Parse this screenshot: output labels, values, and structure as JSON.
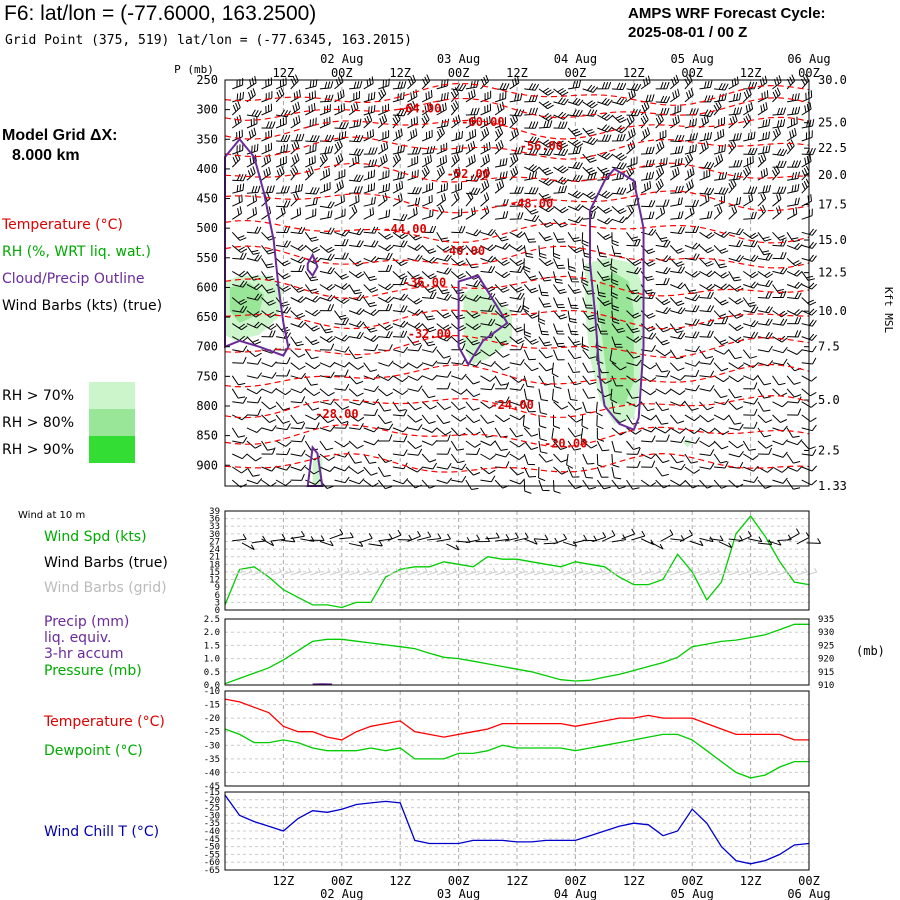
{
  "header": {
    "title": "F6:  lat/lon = (-77.6000, 163.2500)",
    "subtitle": "Grid Point (375, 519) lat/lon = (-77.6345, 163.2015)",
    "cycle_line1": "AMPS WRF Forecast Cycle:",
    "cycle_line2": "2025-08-01 / 00  Z"
  },
  "left_legend": {
    "model_grid_line1": "Model Grid ΔX:",
    "model_grid_line2": "8.000 km",
    "temperature": "Temperature (°C)",
    "rh": "RH (%, WRT liq. wat.)",
    "cloud": "Cloud/Precip Outline",
    "wind_barbs": "Wind Barbs (kts) (true)",
    "rh_levels": [
      "RH > 70%",
      "RH > 80%",
      "RH > 90%"
    ],
    "rh_colors": [
      "#ccf5cc",
      "#99e699",
      "#33dd33"
    ]
  },
  "panel_labels": {
    "wind10m": "Wind at 10 m",
    "wind_spd": "Wind Spd (kts)",
    "wind_barbs_true": "Wind Barbs (true)",
    "wind_barbs_grid": "Wind Barbs (grid)",
    "precip1": "Precip (mm)",
    "precip2": "liq. equiv.",
    "precip3": "3-hr accum",
    "pressure": "Pressure (mb)",
    "pressure_unit": "(mb)",
    "temperature": "Temperature (°C)",
    "dewpoint": "Dewpoint (°C)",
    "wind_chill": "Wind Chill T (°C)",
    "kft": "Kft MSL",
    "p_axis_title": "P (mb)"
  },
  "time_axis": {
    "hour_labels": [
      "12Z",
      "00Z",
      "12Z",
      "00Z",
      "12Z",
      "00Z",
      "12Z",
      "00Z",
      "12Z",
      "00Z"
    ],
    "hour_values": [
      12,
      24,
      36,
      48,
      60,
      72,
      84,
      96,
      108,
      120
    ],
    "date_labels": [
      "02 Aug",
      "03 Aug",
      "04 Aug",
      "05 Aug",
      "06 Aug"
    ],
    "date_values": [
      24,
      48,
      72,
      96,
      120
    ],
    "range_hours": [
      0,
      120
    ]
  },
  "colors": {
    "temperature": "#ff0000",
    "dewpoint": "#00cc00",
    "wind_speed": "#00cc00",
    "pressure": "#00cc00",
    "precip": "#5b1a8c",
    "cloud": "#6a2a9a",
    "wind_chill": "#0000cc",
    "isotherm_label": "#dd0000",
    "grid": "#aaaaaa",
    "legend_purple": "#6a2a9a",
    "legend_green": "#00aa00",
    "legend_red": "#dd0000",
    "legend_blue": "#0000aa"
  },
  "chart_data": [
    {
      "type": "heatmap",
      "id": "cross-section",
      "x_range_hours": [
        0,
        120
      ],
      "pressure_ticks": [
        250,
        300,
        350,
        400,
        450,
        500,
        550,
        600,
        650,
        700,
        750,
        800,
        850,
        900
      ],
      "ylim_mb": [
        250,
        935
      ],
      "height_ticks": [
        "30.0",
        "25.0",
        "22.5",
        "20.0",
        "17.5",
        "15.0",
        "12.5",
        "10.0",
        "7.5",
        "5.0",
        "2.5",
        "1.33"
      ],
      "height_tick_pressures": [
        250,
        322,
        365,
        410,
        460,
        520,
        575,
        640,
        700,
        790,
        875,
        935
      ],
      "isotherm_labels": [
        {
          "text": "-64.00",
          "t": 40,
          "p": 305
        },
        {
          "text": "-60.00",
          "t": 53,
          "p": 328
        },
        {
          "text": "-56.00",
          "t": 65,
          "p": 368
        },
        {
          "text": "-52.00",
          "t": 50,
          "p": 415
        },
        {
          "text": "-48.00",
          "t": 63,
          "p": 465
        },
        {
          "text": "-44.00",
          "t": 37,
          "p": 508
        },
        {
          "text": "-40.00",
          "t": 49,
          "p": 545
        },
        {
          "text": "-36.00",
          "t": 41,
          "p": 598
        },
        {
          "text": "-32.00",
          "t": 42,
          "p": 685
        },
        {
          "text": "-28.00",
          "t": 23,
          "p": 820
        },
        {
          "text": "-24.00",
          "t": 59,
          "p": 805
        },
        {
          "text": "-20.00",
          "t": 70,
          "p": 870
        }
      ]
    },
    {
      "type": "line",
      "id": "wind-speed",
      "ylim": [
        0,
        39
      ],
      "yticks": [
        0,
        3,
        6,
        9,
        12,
        15,
        18,
        21,
        24,
        27,
        30,
        33,
        36,
        39
      ],
      "series": [
        {
          "name": "Wind Spd (kts)",
          "x": [
            0,
            3,
            6,
            9,
            12,
            15,
            18,
            21,
            24,
            27,
            30,
            33,
            36,
            39,
            42,
            45,
            48,
            51,
            54,
            57,
            60,
            63,
            66,
            69,
            72,
            75,
            78,
            81,
            84,
            87,
            90,
            93,
            96,
            99,
            102,
            105,
            108,
            111,
            114,
            117,
            120
          ],
          "values": [
            2,
            16,
            17,
            13,
            8,
            5,
            2,
            2,
            1,
            3,
            3,
            13,
            16,
            17,
            17,
            19,
            18,
            17,
            21,
            20,
            20,
            19,
            18,
            17,
            19,
            18,
            17,
            13,
            10,
            10,
            12,
            22,
            15,
            4,
            11,
            30,
            37,
            29,
            19,
            11,
            10
          ]
        }
      ]
    },
    {
      "type": "line",
      "id": "pressure-precip",
      "ylim_precip": [
        0,
        2.5
      ],
      "yticks_precip": [
        "0.0",
        "0.5",
        "1.0",
        "1.5",
        "2.0",
        "2.5"
      ],
      "ylim_pressure": [
        910,
        935
      ],
      "yticks_pressure": [
        910,
        915,
        920,
        925,
        930,
        935
      ],
      "series": [
        {
          "name": "Pressure (mb)",
          "x": [
            0,
            3,
            6,
            9,
            12,
            15,
            18,
            21,
            24,
            27,
            30,
            33,
            36,
            39,
            42,
            45,
            48,
            51,
            54,
            57,
            60,
            63,
            66,
            69,
            72,
            75,
            78,
            81,
            84,
            87,
            90,
            93,
            96,
            99,
            102,
            105,
            108,
            111,
            114,
            117,
            120
          ],
          "values": [
            910.5,
            912.5,
            914.5,
            916.5,
            919.5,
            923,
            926.5,
            927.3,
            927.3,
            926.6,
            925.9,
            925.2,
            924.5,
            923.8,
            922,
            920.5,
            920,
            919,
            918,
            917,
            916,
            915,
            913.5,
            912,
            911.5,
            911.8,
            913,
            914,
            915.5,
            917,
            918.5,
            920.5,
            924.5,
            925.5,
            926.5,
            927,
            928,
            929,
            931,
            933,
            933
          ]
        },
        {
          "name": "Precip (mm)",
          "x": [
            18,
            20,
            22
          ],
          "values": [
            0.02,
            0.03,
            0.02
          ]
        }
      ]
    },
    {
      "type": "line",
      "id": "temperature-dewpoint",
      "ylim": [
        -45,
        -10
      ],
      "yticks": [
        -45,
        -40,
        -35,
        -30,
        -25,
        -20,
        -15,
        -10
      ],
      "series": [
        {
          "name": "Temperature (°C)",
          "x": [
            0,
            3,
            6,
            9,
            12,
            15,
            18,
            21,
            24,
            27,
            30,
            33,
            36,
            39,
            42,
            45,
            48,
            51,
            54,
            57,
            60,
            63,
            66,
            69,
            72,
            75,
            78,
            81,
            84,
            87,
            90,
            93,
            96,
            99,
            102,
            105,
            108,
            111,
            114,
            117,
            120
          ],
          "values": [
            -13,
            -14,
            -16,
            -18,
            -23,
            -25,
            -25,
            -27,
            -28,
            -25,
            -23,
            -22,
            -21,
            -25,
            -26,
            -27,
            -26,
            -25,
            -24,
            -22,
            -22,
            -22,
            -22,
            -22,
            -23,
            -22,
            -21,
            -20,
            -20,
            -19,
            -20,
            -20,
            -20,
            -22,
            -24,
            -26,
            -26,
            -26,
            -26,
            -28,
            -28
          ]
        },
        {
          "name": "Dewpoint (°C)",
          "x": [
            0,
            3,
            6,
            9,
            12,
            15,
            18,
            21,
            24,
            27,
            30,
            33,
            36,
            39,
            42,
            45,
            48,
            51,
            54,
            57,
            60,
            63,
            66,
            69,
            72,
            75,
            78,
            81,
            84,
            87,
            90,
            93,
            96,
            99,
            102,
            105,
            108,
            111,
            114,
            117,
            120
          ],
          "values": [
            -24,
            -26,
            -29,
            -29,
            -28,
            -29,
            -31,
            -32,
            -32,
            -32,
            -31,
            -32,
            -31,
            -35,
            -35,
            -35,
            -33,
            -33,
            -32,
            -30,
            -31,
            -31,
            -31,
            -31,
            -32,
            -31,
            -30,
            -29,
            -28,
            -27,
            -26,
            -26,
            -28,
            -32,
            -36,
            -40,
            -42,
            -41,
            -38,
            -36,
            -36
          ]
        }
      ]
    },
    {
      "type": "line",
      "id": "wind-chill",
      "ylim": [
        -65,
        -15
      ],
      "yticks": [
        -65,
        -60,
        -55,
        -50,
        -45,
        -40,
        -35,
        -30,
        -25,
        -20,
        -15
      ],
      "series": [
        {
          "name": "Wind Chill T (°C)",
          "x": [
            0,
            3,
            6,
            9,
            12,
            15,
            18,
            21,
            24,
            27,
            30,
            33,
            36,
            39,
            42,
            45,
            48,
            51,
            54,
            57,
            60,
            63,
            66,
            69,
            72,
            75,
            78,
            81,
            84,
            87,
            90,
            93,
            96,
            99,
            102,
            105,
            108,
            111,
            114,
            117,
            120
          ],
          "values": [
            -17,
            -30,
            -34,
            -37,
            -40,
            -32,
            -27,
            -28,
            -26,
            -23,
            -22,
            -21,
            -22,
            -46,
            -48,
            -48,
            -48,
            -46,
            -46,
            -46,
            -47,
            -47,
            -46,
            -46,
            -46,
            -43,
            -40,
            -37,
            -35,
            -36,
            -43,
            -40,
            -26,
            -35,
            -50,
            -59,
            -61,
            -59,
            -55,
            -49,
            -48
          ]
        }
      ]
    }
  ]
}
